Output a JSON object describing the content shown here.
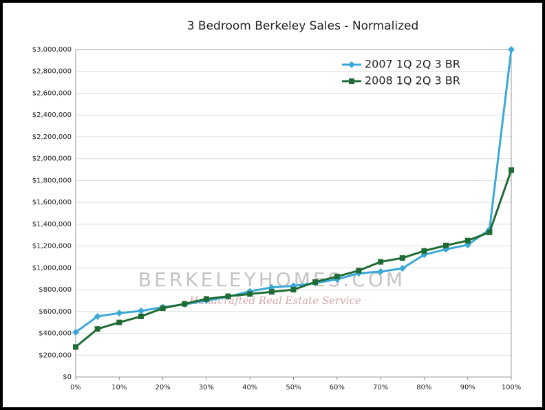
{
  "chart_data": {
    "type": "line",
    "title": "3 Bedroom Berkeley Sales - Normalized",
    "x": [
      0,
      5,
      10,
      15,
      20,
      25,
      30,
      35,
      40,
      45,
      50,
      55,
      60,
      65,
      70,
      75,
      80,
      85,
      90,
      95,
      100
    ],
    "series": [
      {
        "name": "2007 1Q 2Q 3 BR",
        "color": "#3aa8d8",
        "marker": "diamond",
        "values": [
          410000,
          555000,
          585000,
          605000,
          640000,
          665000,
          700000,
          735000,
          785000,
          820000,
          835000,
          860000,
          895000,
          950000,
          965000,
          995000,
          1120000,
          1170000,
          1210000,
          1350000,
          3000000
        ]
      },
      {
        "name": "2008 1Q 2Q 3 BR",
        "color": "#1e6b33",
        "marker": "square",
        "values": [
          275000,
          440000,
          500000,
          555000,
          630000,
          670000,
          715000,
          740000,
          760000,
          780000,
          800000,
          870000,
          920000,
          975000,
          1055000,
          1090000,
          1155000,
          1205000,
          1250000,
          1325000,
          1895000
        ]
      }
    ],
    "xlim": [
      0,
      100
    ],
    "xticks": [
      {
        "value": 0,
        "label": "0%"
      },
      {
        "value": 10,
        "label": "10%"
      },
      {
        "value": 20,
        "label": "20%"
      },
      {
        "value": 30,
        "label": "30%"
      },
      {
        "value": 40,
        "label": "40%"
      },
      {
        "value": 50,
        "label": "50%"
      },
      {
        "value": 60,
        "label": "60%"
      },
      {
        "value": 70,
        "label": "70%"
      },
      {
        "value": 80,
        "label": "80%"
      },
      {
        "value": 90,
        "label": "90%"
      },
      {
        "value": 100,
        "label": "100%"
      }
    ],
    "ylim": [
      0,
      3000000
    ],
    "yticks": [
      {
        "value": 0,
        "label": "$0"
      },
      {
        "value": 200000,
        "label": "$200,000"
      },
      {
        "value": 400000,
        "label": "$400,000"
      },
      {
        "value": 600000,
        "label": "$600,000"
      },
      {
        "value": 800000,
        "label": "$800,000"
      },
      {
        "value": 1000000,
        "label": "$1,000,000"
      },
      {
        "value": 1200000,
        "label": "$1,200,000"
      },
      {
        "value": 1400000,
        "label": "$1,400,000"
      },
      {
        "value": 1600000,
        "label": "$1,600,000"
      },
      {
        "value": 1800000,
        "label": "$1,800,000"
      },
      {
        "value": 2000000,
        "label": "$2,000,000"
      },
      {
        "value": 2200000,
        "label": "$2,200,000"
      },
      {
        "value": 2400000,
        "label": "$2,400,000"
      },
      {
        "value": 2600000,
        "label": "$2,600,000"
      },
      {
        "value": 2800000,
        "label": "$2,800,000"
      },
      {
        "value": 3000000,
        "label": "$3,000,000"
      }
    ],
    "grid": true,
    "legend": "top-right",
    "watermark": {
      "text": "BERKELEYHOMES.COM",
      "tagline": "Handcrafted Real Estate Service"
    }
  }
}
